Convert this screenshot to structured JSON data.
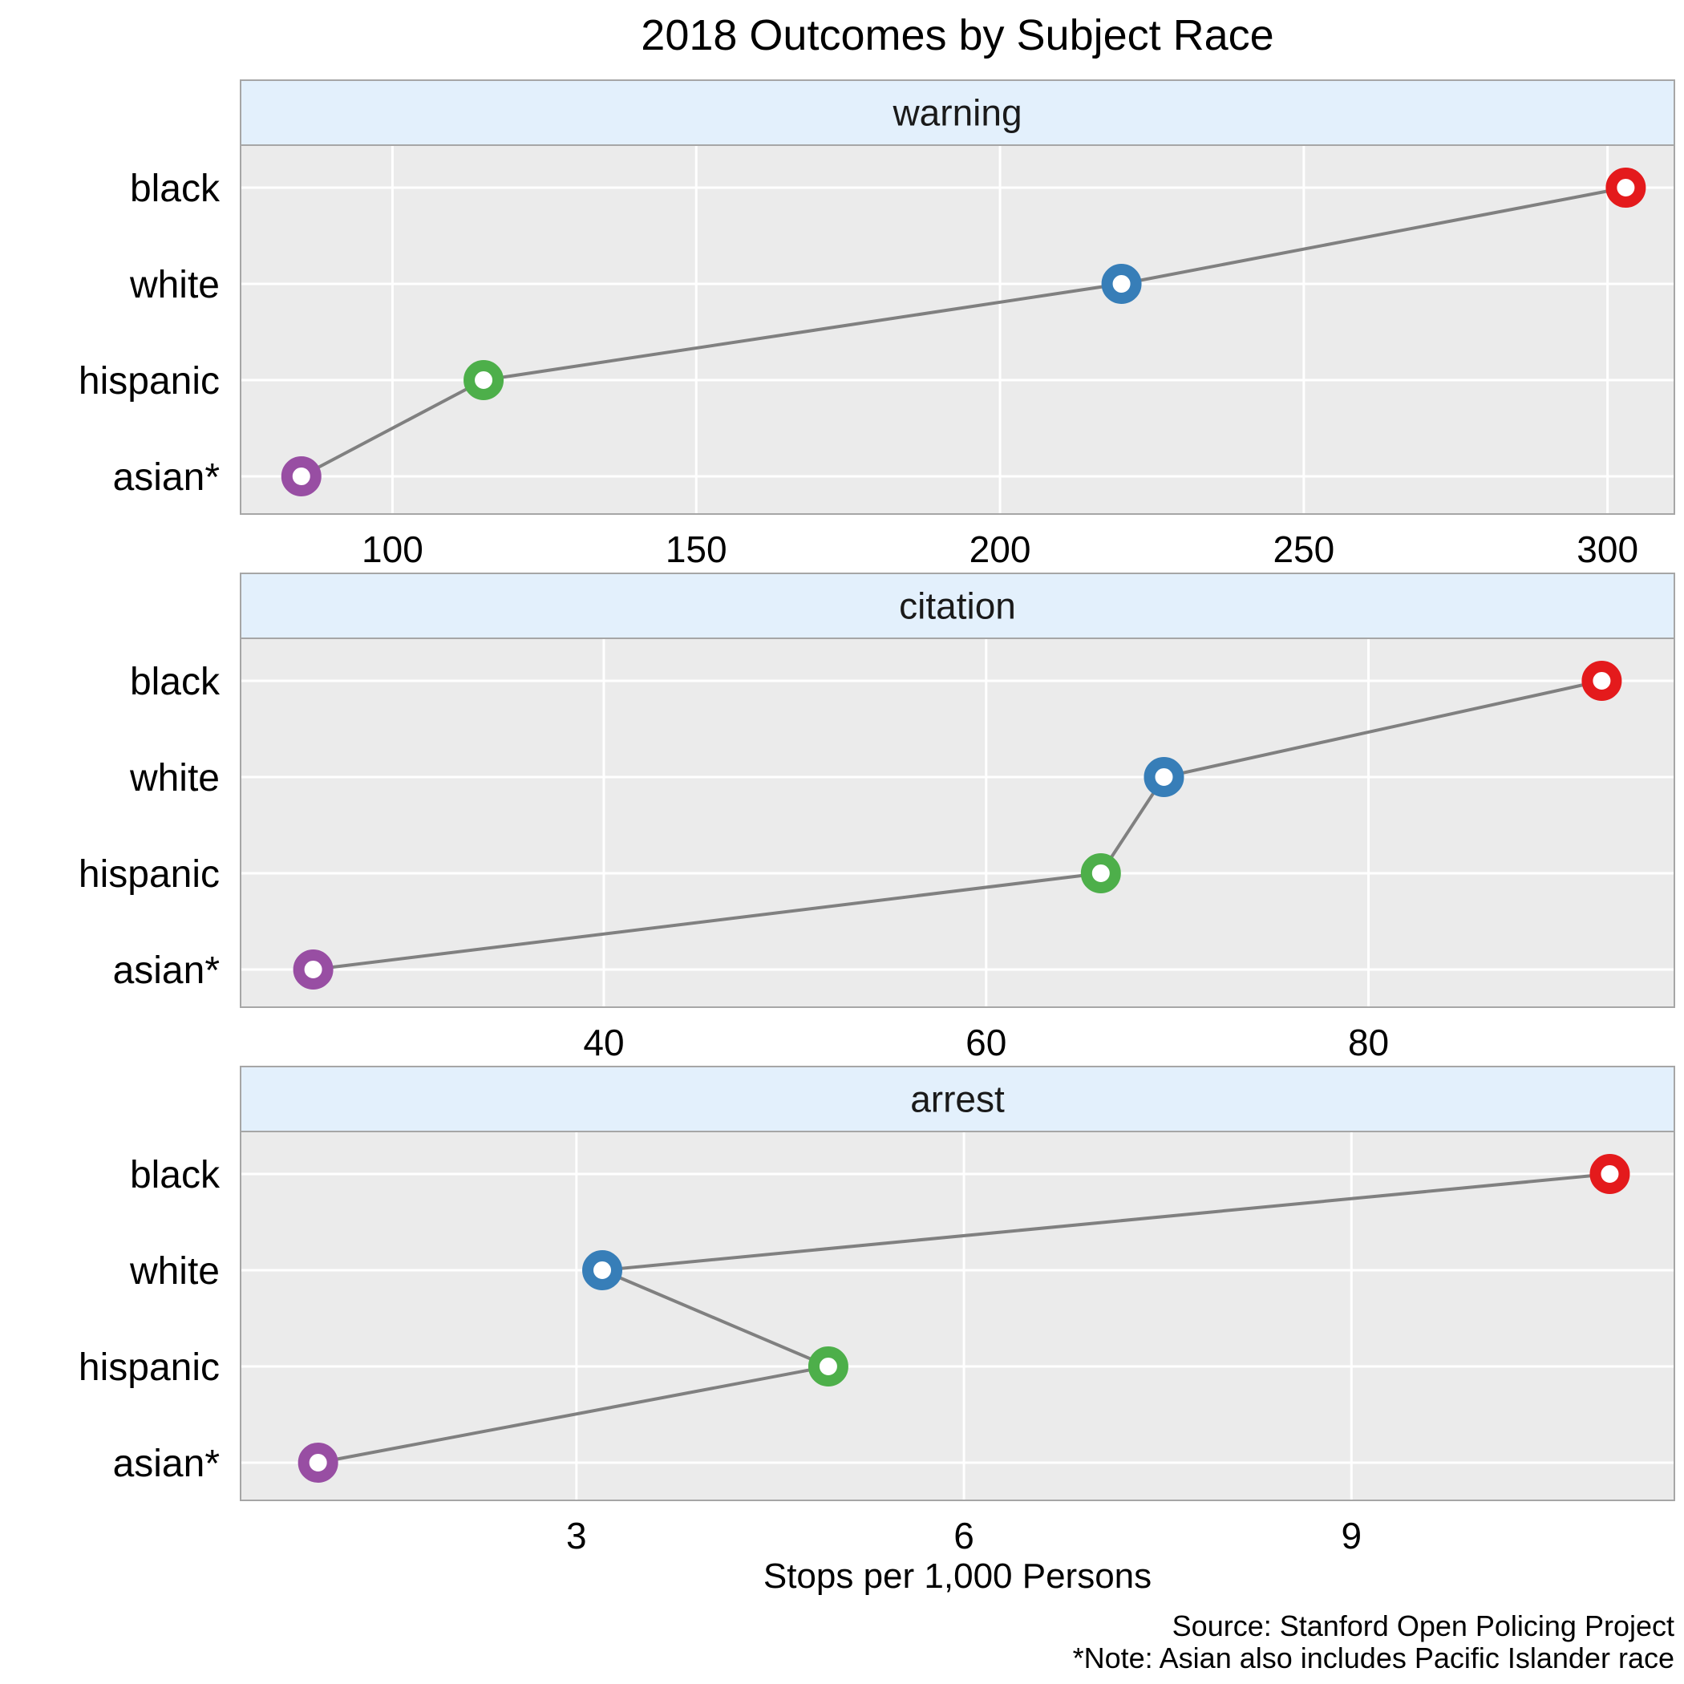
{
  "chart_data": {
    "type": "scatter",
    "title": "2018 Outcomes by Subject Race",
    "xlabel": "Stops per 1,000 Persons",
    "ylabel": "",
    "categories": [
      "black",
      "white",
      "hispanic",
      "asian*"
    ],
    "category_colors": {
      "black": "#e41a1c",
      "white": "#377eb8",
      "hispanic": "#4daf4a",
      "asian*": "#984ea3"
    },
    "line_color": "#808080",
    "panel_background": "#ebebeb",
    "strip_background": "#e3f0fc",
    "grid": true,
    "caption": [
      "Source: Stanford Open Policing Project",
      "*Note: Asian also includes Pacific Islander race"
    ],
    "panels": [
      {
        "label": "warning",
        "xlim": [
          75,
          311
        ],
        "ticks": [
          100,
          150,
          200,
          250,
          300
        ],
        "values": {
          "black": 303,
          "white": 220,
          "hispanic": 115,
          "asian*": 85
        }
      },
      {
        "label": "citation",
        "xlim": [
          21,
          96
        ],
        "ticks": [
          40,
          60,
          80
        ],
        "values": {
          "black": 92.2,
          "white": 69.3,
          "hispanic": 66,
          "asian*": 24.8
        }
      },
      {
        "label": "arrest",
        "xlim": [
          0.4,
          11.5
        ],
        "ticks": [
          3,
          6,
          9
        ],
        "values": {
          "black": 11.0,
          "white": 3.2,
          "hispanic": 4.95,
          "asian*": 1.0
        }
      }
    ]
  }
}
